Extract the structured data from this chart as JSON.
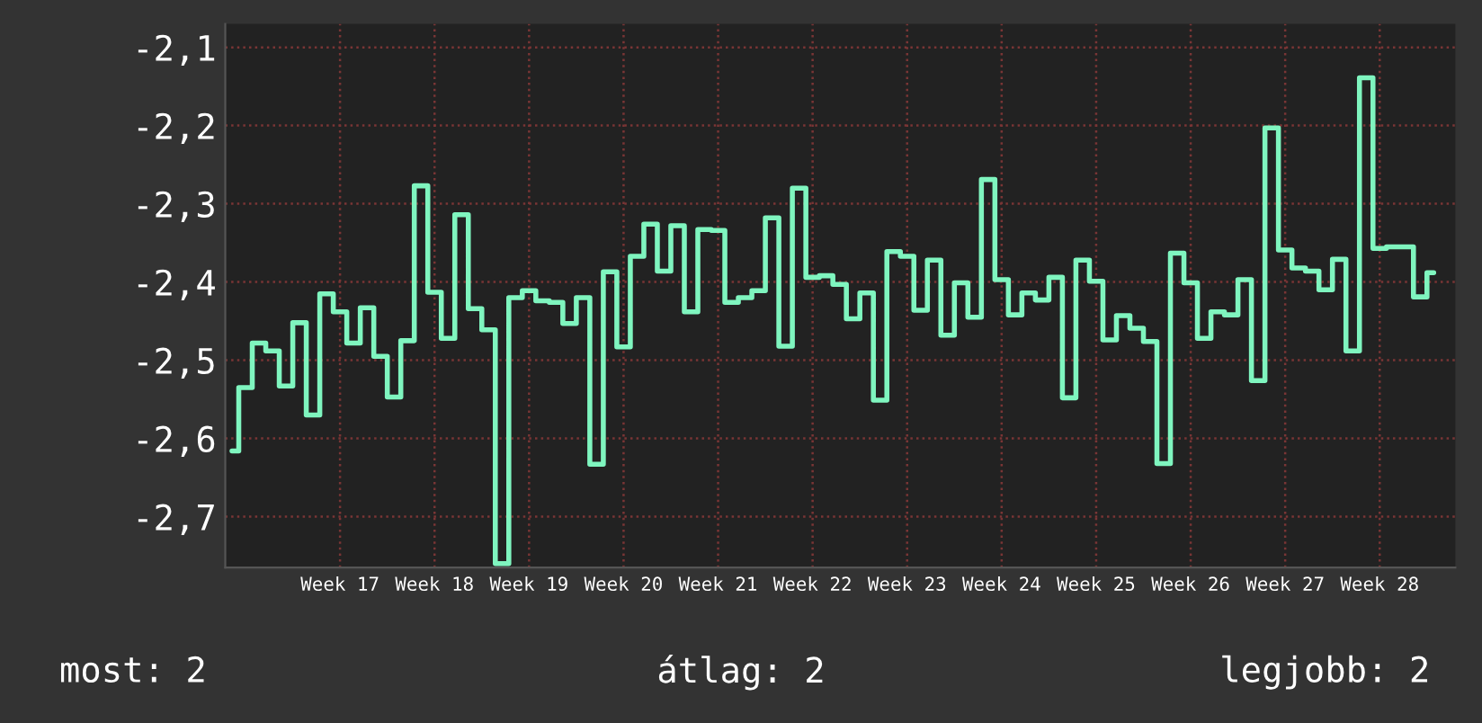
{
  "chart_data": {
    "type": "step",
    "categories": [
      null,
      null,
      null,
      null,
      null,
      null,
      null,
      null,
      "Week 17",
      null,
      null,
      null,
      null,
      null,
      null,
      "Week 18",
      null,
      null,
      null,
      null,
      null,
      null,
      "Week 19",
      null,
      null,
      null,
      null,
      null,
      null,
      "Week 20",
      null,
      null,
      null,
      null,
      null,
      null,
      "Week 21",
      null,
      null,
      null,
      null,
      null,
      null,
      "Week 22",
      null,
      null,
      null,
      null,
      null,
      null,
      "Week 23",
      null,
      null,
      null,
      null,
      null,
      null,
      "Week 24",
      null,
      null,
      null,
      null,
      null,
      null,
      "Week 25",
      null,
      null,
      null,
      null,
      null,
      null,
      "Week 26",
      null,
      null,
      null,
      null,
      null,
      null,
      "Week 27",
      null,
      null,
      null,
      null,
      null,
      null,
      "Week 28",
      null,
      null,
      null,
      null
    ],
    "series": [
      {
        "color": "#7ff5bf",
        "values": [
          -2.616,
          -2.535,
          -2.478,
          -2.488,
          -2.533,
          -2.452,
          -2.57,
          -2.415,
          -2.438,
          -2.478,
          -2.433,
          -2.495,
          -2.547,
          -2.475,
          -2.277,
          -2.413,
          -2.472,
          -2.314,
          -2.434,
          -2.461,
          -2.76,
          -2.42,
          -2.411,
          -2.424,
          -2.426,
          -2.453,
          -2.42,
          -2.633,
          -2.387,
          -2.483,
          -2.367,
          -2.326,
          -2.386,
          -2.328,
          -2.438,
          -2.333,
          -2.334,
          -2.426,
          -2.42,
          -2.411,
          -2.318,
          -2.482,
          -2.28,
          -2.394,
          -2.392,
          -2.403,
          -2.447,
          -2.414,
          -2.551,
          -2.361,
          -2.367,
          -2.436,
          -2.372,
          -2.468,
          -2.401,
          -2.445,
          -2.269,
          -2.397,
          -2.442,
          -2.414,
          -2.423,
          -2.394,
          -2.548,
          -2.372,
          -2.399,
          -2.474,
          -2.443,
          -2.459,
          -2.476,
          -2.632,
          -2.363,
          -2.401,
          -2.472,
          -2.438,
          -2.442,
          -2.397,
          -2.526,
          -2.203,
          -2.359,
          -2.382,
          -2.386,
          -2.41,
          -2.371,
          -2.488,
          -2.139,
          -2.357,
          -2.355,
          -2.355,
          -2.419,
          -2.388
        ]
      }
    ],
    "ylim": [
      -2.765,
      -2.07
    ],
    "yticks": [
      {
        "value": -2.7,
        "label": "-2,7"
      },
      {
        "value": -2.6,
        "label": "-2,6"
      },
      {
        "value": -2.5,
        "label": "-2,5"
      },
      {
        "value": -2.4,
        "label": "-2,4"
      },
      {
        "value": -2.3,
        "label": "-2,3"
      },
      {
        "value": -2.2,
        "label": "-2,2"
      },
      {
        "value": -2.1,
        "label": "-2,1"
      }
    ],
    "grid": true,
    "annotations": [
      "most: 2",
      "átlag: 2",
      "legjobb: 2"
    ]
  }
}
